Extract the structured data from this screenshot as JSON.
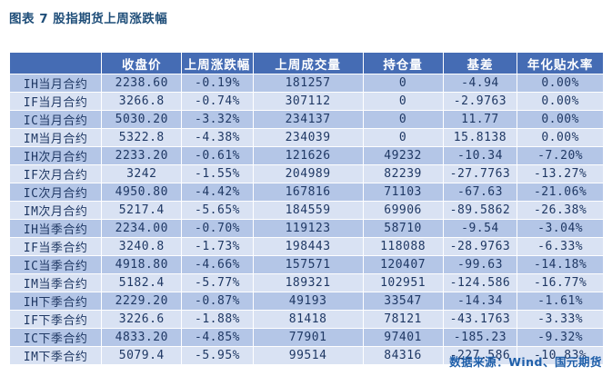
{
  "title": "图表 7 股指期货上周涨跌幅",
  "source_note": "数据来源：Wind、国元期货",
  "colors": {
    "header_bg": "#456cb4",
    "header_text": "#ffffff",
    "row_dark": "#b4c6e7",
    "row_light": "#d9e2f3",
    "cell_text": "#1f3864",
    "title_text": "#1f4e79",
    "source_text": "#1f5fa9"
  },
  "chart_data": {
    "type": "table",
    "title": "图表 7 股指期货上周涨跌幅",
    "columns": [
      "",
      "收盘价",
      "上周涨跌幅",
      "上周成交量",
      "持仓量",
      "基差",
      "年化贴水率"
    ],
    "rows": [
      [
        "IH当月合约",
        "2238.60",
        "-0.19%",
        "181257",
        "0",
        "-4.94",
        "0.00%"
      ],
      [
        "IF当月合约",
        "3266.8",
        "-0.74%",
        "307112",
        "0",
        "-2.9763",
        "0.00%"
      ],
      [
        "IC当月合约",
        "5030.20",
        "-3.32%",
        "234137",
        "0",
        "11.77",
        "0.00%"
      ],
      [
        "IM当月合约",
        "5322.8",
        "-4.38%",
        "234039",
        "0",
        "15.8138",
        "0.00%"
      ],
      [
        "IH次月合约",
        "2233.20",
        "-0.61%",
        "121626",
        "49232",
        "-10.34",
        "-7.20%"
      ],
      [
        "IF次月合约",
        "3242",
        "-1.55%",
        "204989",
        "82239",
        "-27.7763",
        "-13.27%"
      ],
      [
        "IC次月合约",
        "4950.80",
        "-4.42%",
        "167816",
        "71103",
        "-67.63",
        "-21.06%"
      ],
      [
        "IM次月合约",
        "5217.4",
        "-5.65%",
        "184559",
        "69906",
        "-89.5862",
        "-26.38%"
      ],
      [
        "IH当季合约",
        "2234.00",
        "-0.70%",
        "119123",
        "58710",
        "-9.54",
        "-3.04%"
      ],
      [
        "IF当季合约",
        "3240.8",
        "-1.73%",
        "198443",
        "118088",
        "-28.9763",
        "-6.33%"
      ],
      [
        "IC当季合约",
        "4918.80",
        "-4.66%",
        "157571",
        "120407",
        "-99.63",
        "-14.18%"
      ],
      [
        "IM当季合约",
        "5182.4",
        "-5.77%",
        "189321",
        "102951",
        "-124.586",
        "-16.77%"
      ],
      [
        "IH下季合约",
        "2229.20",
        "-0.87%",
        "49193",
        "33547",
        "-14.34",
        "-1.61%"
      ],
      [
        "IF下季合约",
        "3226.6",
        "-1.88%",
        "81418",
        "78121",
        "-43.1763",
        "-3.33%"
      ],
      [
        "IC下季合约",
        "4833.20",
        "-4.85%",
        "77901",
        "97401",
        "-185.23",
        "-9.32%"
      ],
      [
        "IM下季合约",
        "5079.4",
        "-5.95%",
        "99514",
        "84316",
        "-227.586",
        "-10.83%"
      ]
    ],
    "column_widths_pct": [
      15.5,
      13.5,
      12.0,
      18.5,
      13.5,
      12.5,
      14.5
    ],
    "layout_hints": {
      "header_style": "solid blue, white bold text",
      "banding": "rows alternate dark/light blue starting dark",
      "gridlines": "white"
    }
  }
}
